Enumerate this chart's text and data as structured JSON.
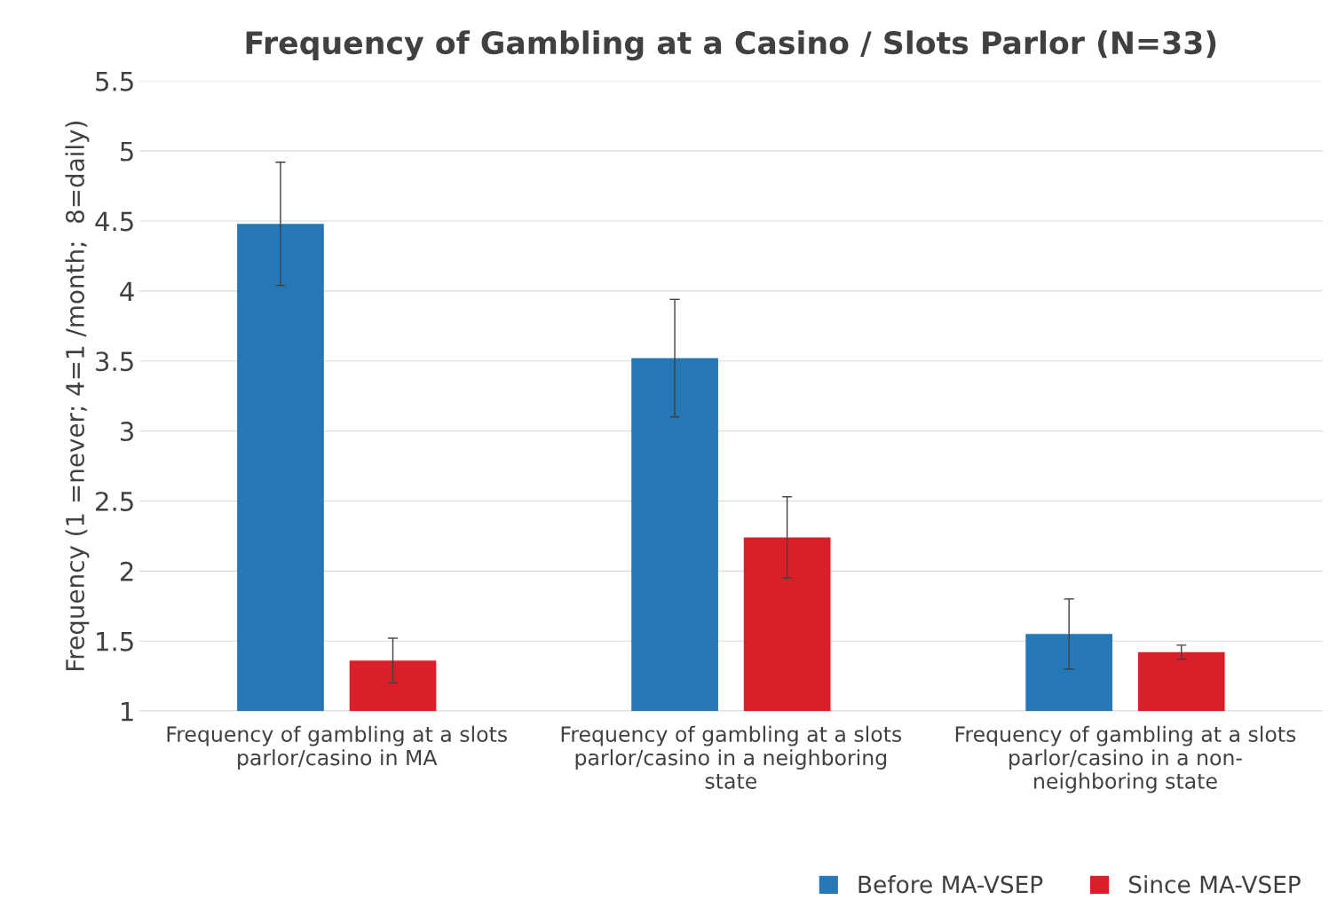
{
  "chart_data": {
    "type": "bar",
    "title": "Frequency of Gambling at a Casino / Slots Parlor (N=33)",
    "ylabel": "Frequency (1 =never; 4=1 /month;  8=daily)",
    "categories": [
      "Frequency of gambling at a slots parlor/casino in MA",
      "Frequency of gambling at a slots parlor/casino in a neighboring state",
      "Frequency of gambling at a slots parlor/casino in a non-neighboring state"
    ],
    "series": [
      {
        "name": "Before MA-VSEP",
        "color": "#2577b5",
        "values": [
          4.48,
          3.52,
          1.55
        ],
        "errors": [
          0.44,
          0.42,
          0.25
        ]
      },
      {
        "name": "Since MA-VSEP",
        "color": "#d9202a",
        "values": [
          1.36,
          2.24,
          1.42
        ],
        "errors": [
          0.16,
          0.29,
          0.05
        ]
      }
    ],
    "ylim": [
      1,
      5.5
    ],
    "yticks": [
      1,
      1.5,
      2,
      2.5,
      3,
      3.5,
      4,
      4.5,
      5,
      5.5
    ],
    "grid": "y",
    "legend": "bottom right"
  }
}
